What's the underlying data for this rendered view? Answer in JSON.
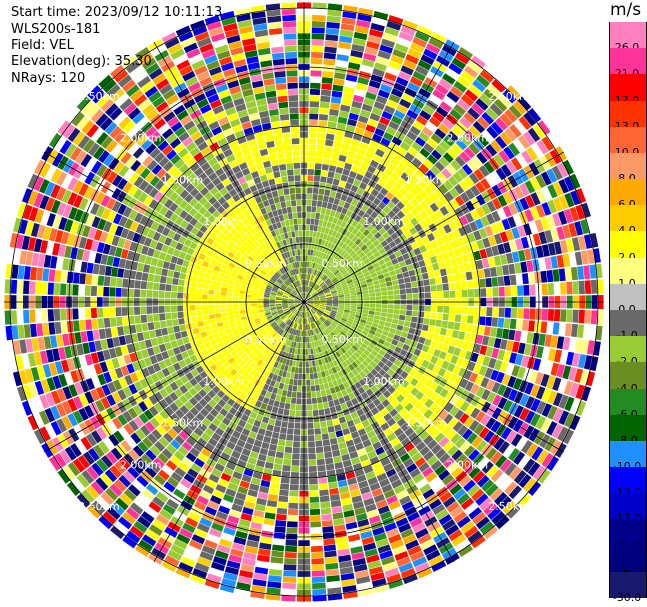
{
  "header": {
    "start_time": "Start time: 2023/09/12 10:11:13",
    "instrument": "WLS200s-181",
    "field": "Field: VEL",
    "elevation": "Elevation(deg): 35.30",
    "nrays": "NRays: 120"
  },
  "chart_data": {
    "type": "ppi",
    "field": "VEL",
    "units": "m/s",
    "nrays": 120,
    "elevation_deg": 35.3,
    "range_rings": {
      "labels": [
        "0.50km",
        "1.00km",
        "1.50km",
        "2.00km",
        "2.50km"
      ]
    },
    "colorbar": {
      "label": "m/s",
      "ticks": [
        "26.0",
        "21.0",
        "17.0",
        "13.0",
        "10.0",
        "8.0",
        "6.0",
        "4.0",
        "2.0",
        "1.0",
        "0.0",
        "-1.0",
        "-2.0",
        "-4.0",
        "-6.0",
        "-8.0",
        "-10.0",
        "-13.0",
        "-17.0",
        "-21.0",
        "-26.0",
        "-30.0"
      ],
      "colors": [
        "#ff7fbf",
        "#ff3399",
        "#ff0000",
        "#ff3300",
        "#ff6633",
        "#ff9966",
        "#ffaa00",
        "#ffcc00",
        "#ffff00",
        "#ffff80",
        "#c0c0c0",
        "#696969",
        "#99cc33",
        "#6b8e23",
        "#228b22",
        "#006400",
        "#1e90ff",
        "#0000ff",
        "#0000cd",
        "#00008b",
        "#000080",
        "#191970"
      ]
    },
    "pattern": {
      "inner_positive_lobe": "yellow, west of radar and northeast arc",
      "inner_negative_lobe": "green, east of radar",
      "mid_ring": "gray",
      "outer_region": "noise"
    }
  }
}
